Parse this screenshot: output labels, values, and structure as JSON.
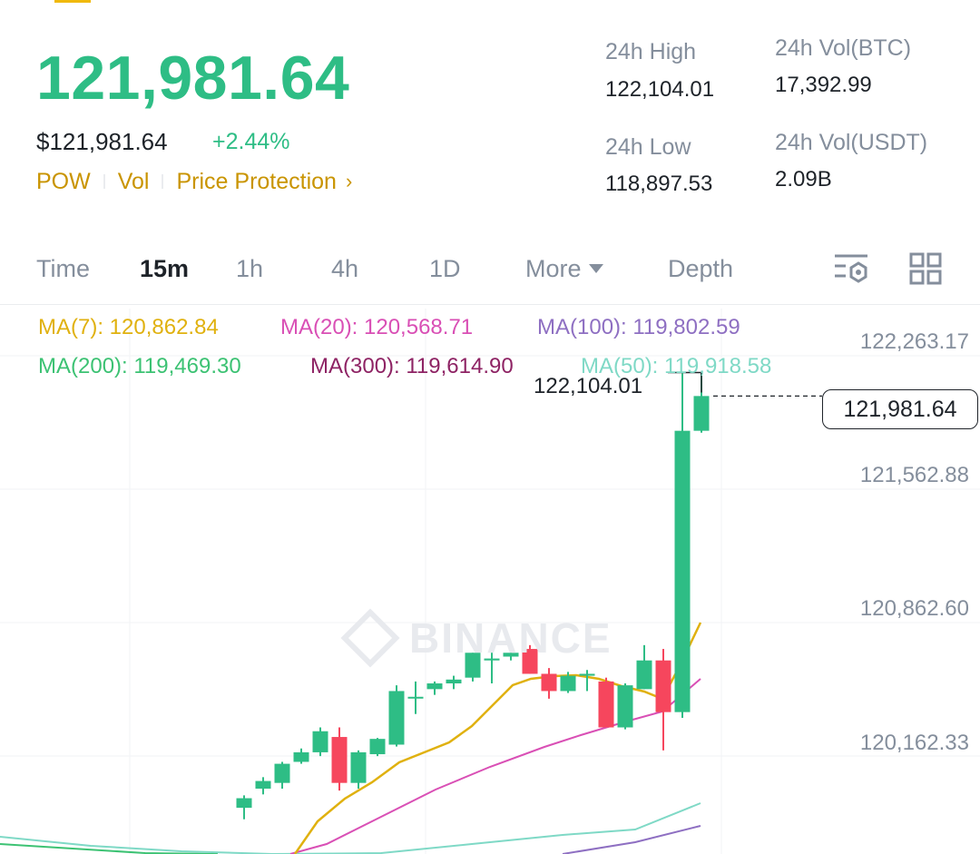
{
  "ticker": {
    "last_price": "121,981.64",
    "usd_price": "$121,981.64",
    "change_percent": "+2.44%",
    "tags": [
      "POW",
      "Vol",
      "Price Protection"
    ],
    "colors": {
      "up": "#2ebd85",
      "down": "#f6465d",
      "accent": "#c99400"
    }
  },
  "stats": {
    "high_label": "24h High",
    "high_value": "122,104.01",
    "low_label": "24h Low",
    "low_value": "118,897.53",
    "vol_btc_label": "24h Vol(BTC)",
    "vol_btc_value": "17,392.99",
    "vol_usdt_label": "24h Vol(USDT)",
    "vol_usdt_value": "2.09B"
  },
  "tabs": [
    {
      "label": "Time",
      "active": false
    },
    {
      "label": "15m",
      "active": true
    },
    {
      "label": "1h",
      "active": false
    },
    {
      "label": "4h",
      "active": false
    },
    {
      "label": "1D",
      "active": false
    },
    {
      "label": "More",
      "active": false
    },
    {
      "label": "Depth",
      "active": false
    }
  ],
  "icons": [
    "indicator-settings-icon",
    "grid-layout-icon"
  ],
  "ma_legend": [
    {
      "text": "MA(7): 120,862.84",
      "color": "#e0b10f"
    },
    {
      "text": "MA(20): 120,568.71",
      "color": "#d94fb5"
    },
    {
      "text": "MA(100): 119,802.59",
      "color": "#8e6fc2"
    },
    {
      "text": "MA(200): 119,469.30",
      "color": "#3cc273"
    },
    {
      "text": "MA(300): 119,614.90",
      "color": "#8e2364"
    },
    {
      "text": "MA(50): 119,918.58",
      "color": "#7fd9c6"
    }
  ],
  "chart": {
    "price_axis": [
      "122,263.17",
      "121,562.88",
      "120,862.60",
      "120,162.33"
    ],
    "current_price_label": "121,981.64",
    "high_marker_label": "122,104.01",
    "watermark": "BINANCE"
  },
  "chart_data": {
    "type": "candlestick",
    "interval": "15m",
    "y_axis_ticks": [
      122263.17,
      121562.88,
      120862.6,
      120162.33
    ],
    "candles": [
      {
        "o": 119830,
        "h": 119895,
        "l": 119770,
        "c": 119880
      },
      {
        "o": 119930,
        "h": 119990,
        "l": 119900,
        "c": 119970
      },
      {
        "o": 119960,
        "h": 120070,
        "l": 119930,
        "c": 120060
      },
      {
        "o": 120070,
        "h": 120140,
        "l": 120060,
        "c": 120120
      },
      {
        "o": 120120,
        "h": 120250,
        "l": 120100,
        "c": 120230
      },
      {
        "o": 120200,
        "h": 120250,
        "l": 119920,
        "c": 119960
      },
      {
        "o": 119960,
        "h": 120130,
        "l": 119930,
        "c": 120120
      },
      {
        "o": 120110,
        "h": 120195,
        "l": 120100,
        "c": 120190
      },
      {
        "o": 120160,
        "h": 120470,
        "l": 120150,
        "c": 120440
      },
      {
        "o": 120410,
        "h": 120490,
        "l": 120320,
        "c": 120410
      },
      {
        "o": 120450,
        "h": 120490,
        "l": 120420,
        "c": 120480
      },
      {
        "o": 120480,
        "h": 120520,
        "l": 120450,
        "c": 120500
      },
      {
        "o": 120510,
        "h": 120640,
        "l": 120490,
        "c": 120640
      },
      {
        "o": 120600,
        "h": 120690,
        "l": 120480,
        "c": 120610
      },
      {
        "o": 120620,
        "h": 120680,
        "l": 120600,
        "c": 120640
      },
      {
        "o": 120660,
        "h": 120680,
        "l": 120530,
        "c": 120530
      },
      {
        "o": 120530,
        "h": 120560,
        "l": 120400,
        "c": 120440
      },
      {
        "o": 120440,
        "h": 120540,
        "l": 120430,
        "c": 120520
      },
      {
        "o": 120520,
        "h": 120550,
        "l": 120440,
        "c": 120530
      },
      {
        "o": 120490,
        "h": 120510,
        "l": 120250,
        "c": 120250
      },
      {
        "o": 120250,
        "h": 120480,
        "l": 120240,
        "c": 120470
      },
      {
        "o": 120450,
        "h": 120680,
        "l": 120450,
        "c": 120600
      },
      {
        "o": 120600,
        "h": 120660,
        "l": 120130,
        "c": 120330
      },
      {
        "o": 120330,
        "h": 122100,
        "l": 120300,
        "c": 121800
      },
      {
        "o": 121800,
        "h": 122104.01,
        "l": 121790,
        "c": 121981.64
      }
    ],
    "moving_averages": [
      {
        "name": "MA(7)",
        "value": 120862.84
      },
      {
        "name": "MA(20)",
        "value": 120568.71
      },
      {
        "name": "MA(100)",
        "value": 119802.59
      },
      {
        "name": "MA(200)",
        "value": 119469.3
      },
      {
        "name": "MA(300)",
        "value": 119614.9
      },
      {
        "name": "MA(50)",
        "value": 119918.58
      }
    ],
    "last_price": 121981.64,
    "visible_high": 122104.01
  }
}
